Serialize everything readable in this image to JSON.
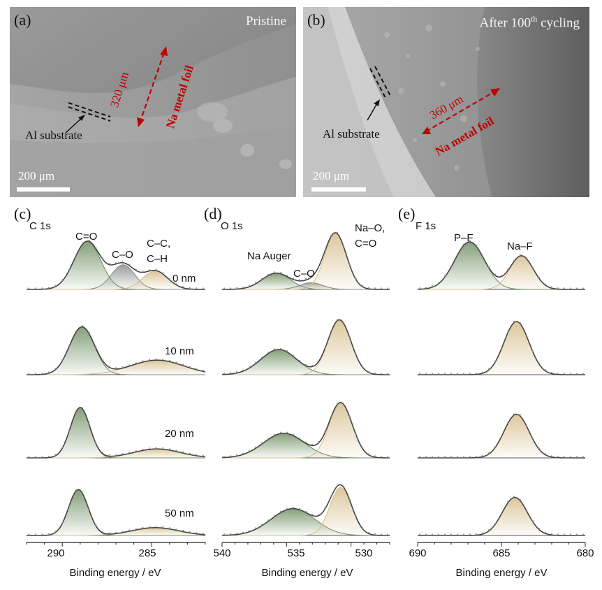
{
  "sem_panels": [
    {
      "letter": "(a)",
      "title": "Pristine",
      "title_sup": "",
      "title_suffix": "",
      "thickness": "320 μm",
      "foil_label": "Na metal foil",
      "substrate_label": "Al substrate",
      "scale_label": "200 μm"
    },
    {
      "letter": "(b)",
      "title": "After 100",
      "title_sup": "th",
      "title_suffix": " cycling",
      "thickness": "360 μm",
      "foil_label": "Na metal foil",
      "substrate_label": "Al substrate",
      "scale_label": "200 μm"
    }
  ],
  "depth_labels": [
    "0 nm",
    "10 nm",
    "20 nm",
    "50 nm"
  ],
  "colors": {
    "green": "#6f8f62",
    "tan": "#d6be8c",
    "envelope": "#444444",
    "grey": "#8c8c8c",
    "baseline": "#555555"
  },
  "chart_data": [
    {
      "type": "line",
      "letter": "(c)",
      "title": "C 1s",
      "xlabel": "Binding energy / eV",
      "x_reversed": true,
      "xlim": [
        292,
        282
      ],
      "xticks": [
        290,
        285
      ],
      "peak_labels": [
        {
          "text": "C=O",
          "x": 288.6
        },
        {
          "text": "C–O",
          "x": 286.6
        },
        {
          "text": "C–C,",
          "x": 284.8
        },
        {
          "text": "C–H",
          "x": 284.8
        }
      ],
      "spectra": [
        {
          "depth": "0 nm",
          "peaks": [
            {
              "name": "C=O",
              "center": 288.6,
              "height": 0.86,
              "width": 0.75,
              "fill": "green"
            },
            {
              "name": "C–O",
              "center": 286.6,
              "height": 0.44,
              "width": 0.65,
              "fill": "grey"
            },
            {
              "name": "C–C, C–H",
              "center": 284.8,
              "height": 0.33,
              "width": 0.7,
              "fill": "tan"
            }
          ]
        },
        {
          "depth": "10 nm",
          "peaks": [
            {
              "name": "C=O",
              "center": 288.9,
              "height": 0.85,
              "width": 0.7,
              "fill": "green"
            },
            {
              "name": "C–C, C–H",
              "center": 284.7,
              "height": 0.26,
              "width": 1.5,
              "fill": "tan"
            }
          ]
        },
        {
          "depth": "20 nm",
          "peaks": [
            {
              "name": "C=O",
              "center": 289.0,
              "height": 0.9,
              "width": 0.55,
              "fill": "green"
            },
            {
              "name": "C–C, C–H",
              "center": 284.7,
              "height": 0.16,
              "width": 1.3,
              "fill": "tan"
            }
          ]
        },
        {
          "depth": "50 nm",
          "peaks": [
            {
              "name": "C=O",
              "center": 289.1,
              "height": 0.82,
              "width": 0.55,
              "fill": "green"
            },
            {
              "name": "C–C, C–H",
              "center": 284.8,
              "height": 0.14,
              "width": 1.3,
              "fill": "tan"
            }
          ]
        }
      ]
    },
    {
      "type": "line",
      "letter": "(d)",
      "title": "O 1s",
      "xlabel": "Binding energy / eV",
      "x_reversed": true,
      "xlim": [
        540,
        527
      ],
      "xticks": [
        540,
        535,
        530
      ],
      "peak_labels": [
        {
          "text": "Na Auger",
          "x": 536.2
        },
        {
          "text": "C–O",
          "x": 533.5
        },
        {
          "text": "Na–O,",
          "x": 530.9
        },
        {
          "text": "C=O",
          "x": 530.9
        }
      ],
      "spectra": [
        {
          "depth": "0 nm",
          "peaks": [
            {
              "name": "Na Auger",
              "center": 535.8,
              "height": 0.29,
              "width": 1.1,
              "fill": "green"
            },
            {
              "name": "C–O",
              "center": 533.1,
              "height": 0.12,
              "width": 0.9,
              "fill": "grey"
            },
            {
              "name": "Na–O, C=O",
              "center": 531.2,
              "height": 1.0,
              "width": 0.85,
              "fill": "tan"
            }
          ]
        },
        {
          "depth": "10 nm",
          "peaks": [
            {
              "name": "Na Auger",
              "center": 535.6,
              "height": 0.45,
              "width": 1.4,
              "fill": "green"
            },
            {
              "name": "Na–O, C=O",
              "center": 530.9,
              "height": 0.98,
              "width": 0.9,
              "fill": "tan"
            }
          ]
        },
        {
          "depth": "20 nm",
          "peaks": [
            {
              "name": "Na Auger",
              "center": 535.2,
              "height": 0.44,
              "width": 1.6,
              "fill": "green"
            },
            {
              "name": "Na–O, C=O",
              "center": 530.8,
              "height": 0.98,
              "width": 0.9,
              "fill": "tan"
            }
          ]
        },
        {
          "depth": "50 nm",
          "peaks": [
            {
              "name": "Na Auger",
              "center": 534.5,
              "height": 0.48,
              "width": 1.7,
              "fill": "green"
            },
            {
              "name": "Na–O, C=O",
              "center": 530.8,
              "height": 0.86,
              "width": 0.85,
              "fill": "tan"
            }
          ]
        }
      ]
    },
    {
      "type": "line",
      "letter": "(e)",
      "title": "F 1s",
      "xlabel": "Binding energy / eV",
      "x_reversed": true,
      "xlim": [
        690,
        680
      ],
      "xticks": [
        690,
        685,
        680
      ],
      "peak_labels": [
        {
          "text": "P–F",
          "x": 687.0
        },
        {
          "text": "Na–F",
          "x": 683.8
        }
      ],
      "spectra": [
        {
          "depth": "0 nm",
          "peaks": [
            {
              "name": "P–F",
              "center": 686.9,
              "height": 0.85,
              "width": 0.9,
              "fill": "green"
            },
            {
              "name": "Na–F",
              "center": 683.8,
              "height": 0.6,
              "width": 0.7,
              "fill": "tan"
            }
          ]
        },
        {
          "depth": "10 nm",
          "peaks": [
            {
              "name": "Na–F",
              "center": 684.1,
              "height": 0.95,
              "width": 0.75,
              "fill": "tan"
            }
          ]
        },
        {
          "depth": "20 nm",
          "peaks": [
            {
              "name": "Na–F",
              "center": 684.1,
              "height": 0.78,
              "width": 0.75,
              "fill": "tan"
            }
          ]
        },
        {
          "depth": "50 nm",
          "peaks": [
            {
              "name": "Na–F",
              "center": 684.2,
              "height": 0.68,
              "width": 0.75,
              "fill": "tan"
            }
          ]
        }
      ]
    }
  ]
}
